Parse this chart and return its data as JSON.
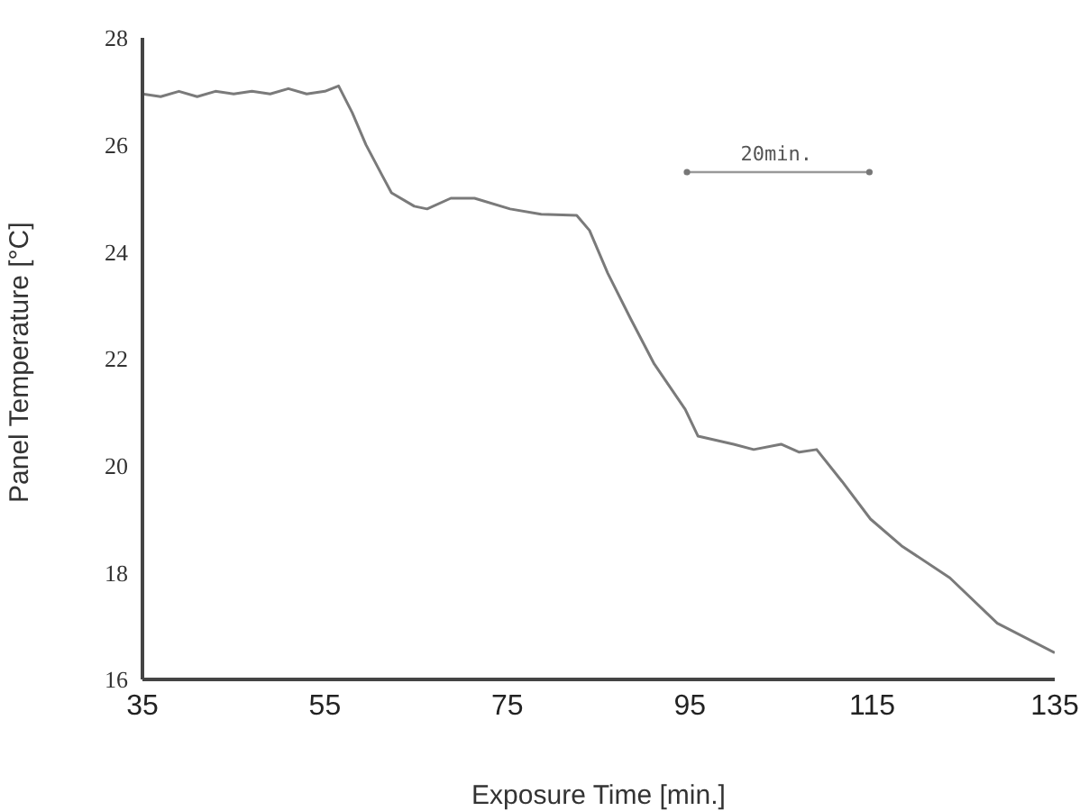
{
  "chart_data": {
    "type": "line",
    "xlabel": "Exposure Time [min.]",
    "ylabel": "Panel Temperature [°C]",
    "annotations": [
      "20min."
    ],
    "x": [
      35,
      37,
      39,
      41,
      43,
      45,
      47,
      49,
      51,
      53,
      55,
      56.5,
      58,
      59.5,
      61.3,
      62.3,
      64.8,
      66.2,
      68.8,
      71.4,
      75.3,
      78.7,
      82.6,
      84,
      86,
      88.5,
      91.1,
      94.5,
      95.9,
      99.8,
      102,
      105,
      107,
      108.9,
      111.7,
      114.8,
      118.2,
      123.5,
      128.7,
      135
    ],
    "series": [
      {
        "color": "#7a7a7a",
        "values": [
          26.95,
          26.9,
          27.0,
          26.9,
          27.0,
          26.95,
          27.0,
          26.95,
          27.05,
          26.95,
          27.0,
          27.1,
          26.6,
          26.0,
          25.42,
          25.1,
          24.85,
          24.8,
          25.0,
          25.0,
          24.8,
          24.7,
          24.68,
          24.4,
          23.6,
          22.75,
          21.9,
          21.05,
          20.55,
          20.4,
          20.3,
          20.4,
          20.25,
          20.3,
          19.7,
          19.0,
          18.5,
          17.9,
          17.05,
          16.5
        ]
      }
    ],
    "xlim": [
      35,
      135
    ],
    "xticks": [
      35,
      55,
      75,
      95,
      115,
      135
    ],
    "ylim": [
      16,
      28
    ],
    "yticks": [
      16,
      18,
      20,
      22,
      24,
      26,
      28
    ],
    "grid": false,
    "legend": false,
    "marker": "none",
    "line_style": "solid"
  }
}
